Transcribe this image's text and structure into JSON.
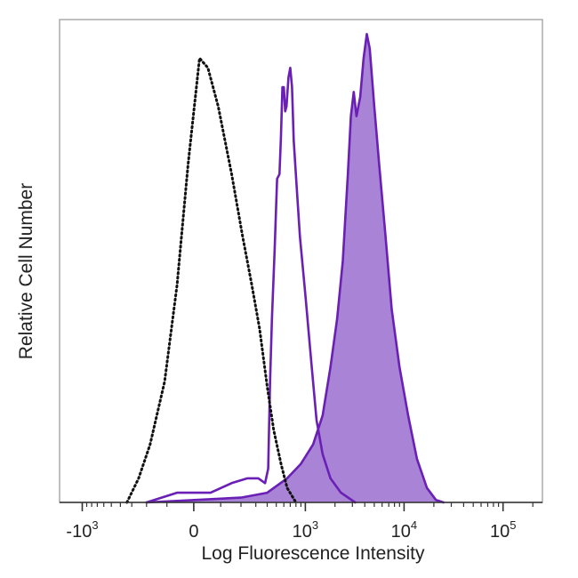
{
  "chart_data": {
    "type": "area",
    "xlabel": "Log Fluorescence Intensity",
    "ylabel": "Relative Cell Number",
    "x_scale": "biexponential",
    "xlim": [
      -1700,
      250000
    ],
    "ylim": [
      0,
      1.0
    ],
    "grid": false,
    "legend": "none",
    "x_ticks": [
      {
        "value": -1000,
        "label_base": "-10",
        "label_exp": "3"
      },
      {
        "value": 0,
        "label_base": "0",
        "label_exp": ""
      },
      {
        "value": 1000,
        "label_base": "10",
        "label_exp": "3"
      },
      {
        "value": 10000,
        "label_base": "10",
        "label_exp": "4"
      },
      {
        "value": 100000,
        "label_base": "10",
        "label_exp": "5"
      }
    ],
    "series": [
      {
        "style": "dotted",
        "color": "#111111",
        "fill": "none",
        "points": [
          [
            -340,
            0.0
          ],
          [
            -250,
            0.05
          ],
          [
            -180,
            0.12
          ],
          [
            -110,
            0.25
          ],
          [
            -60,
            0.45
          ],
          [
            -20,
            0.7
          ],
          [
            20,
            0.92
          ],
          [
            50,
            0.9
          ],
          [
            90,
            0.82
          ],
          [
            150,
            0.68
          ],
          [
            210,
            0.55
          ],
          [
            270,
            0.45
          ],
          [
            330,
            0.36
          ],
          [
            400,
            0.24
          ],
          [
            470,
            0.15
          ],
          [
            560,
            0.08
          ],
          [
            650,
            0.03
          ],
          [
            800,
            0.0
          ]
        ]
      },
      {
        "style": "solid",
        "color": "#6a1fb5",
        "fill": "none",
        "points": [
          [
            -200,
            0.0
          ],
          [
            -60,
            0.02
          ],
          [
            60,
            0.02
          ],
          [
            150,
            0.04
          ],
          [
            240,
            0.05
          ],
          [
            320,
            0.05
          ],
          [
            380,
            0.04
          ],
          [
            410,
            0.07
          ],
          [
            430,
            0.25
          ],
          [
            450,
            0.38
          ],
          [
            480,
            0.52
          ],
          [
            510,
            0.67
          ],
          [
            540,
            0.68
          ],
          [
            560,
            0.76
          ],
          [
            580,
            0.86
          ],
          [
            600,
            0.86
          ],
          [
            620,
            0.81
          ],
          [
            640,
            0.82
          ],
          [
            670,
            0.88
          ],
          [
            700,
            0.9
          ],
          [
            730,
            0.86
          ],
          [
            760,
            0.75
          ],
          [
            810,
            0.66
          ],
          [
            880,
            0.55
          ],
          [
            1000,
            0.43
          ],
          [
            1150,
            0.29
          ],
          [
            1300,
            0.17
          ],
          [
            1500,
            0.1
          ],
          [
            1800,
            0.05
          ],
          [
            2300,
            0.02
          ],
          [
            3200,
            0.0
          ]
        ]
      },
      {
        "style": "filled",
        "color": "#6a1fb5",
        "fill": "#a983d6",
        "points": [
          [
            -200,
            0.0
          ],
          [
            200,
            0.01
          ],
          [
            400,
            0.02
          ],
          [
            650,
            0.05
          ],
          [
            900,
            0.08
          ],
          [
            1200,
            0.12
          ],
          [
            1500,
            0.18
          ],
          [
            1800,
            0.28
          ],
          [
            2100,
            0.38
          ],
          [
            2400,
            0.5
          ],
          [
            2700,
            0.68
          ],
          [
            2900,
            0.8
          ],
          [
            3100,
            0.85
          ],
          [
            3300,
            0.8
          ],
          [
            3600,
            0.84
          ],
          [
            3900,
            0.92
          ],
          [
            4200,
            0.97
          ],
          [
            4500,
            0.94
          ],
          [
            5000,
            0.82
          ],
          [
            5600,
            0.7
          ],
          [
            6500,
            0.55
          ],
          [
            7500,
            0.4
          ],
          [
            9000,
            0.28
          ],
          [
            11000,
            0.18
          ],
          [
            13500,
            0.09
          ],
          [
            17000,
            0.03
          ],
          [
            21000,
            0.005
          ],
          [
            25000,
            0.0
          ]
        ]
      }
    ]
  }
}
